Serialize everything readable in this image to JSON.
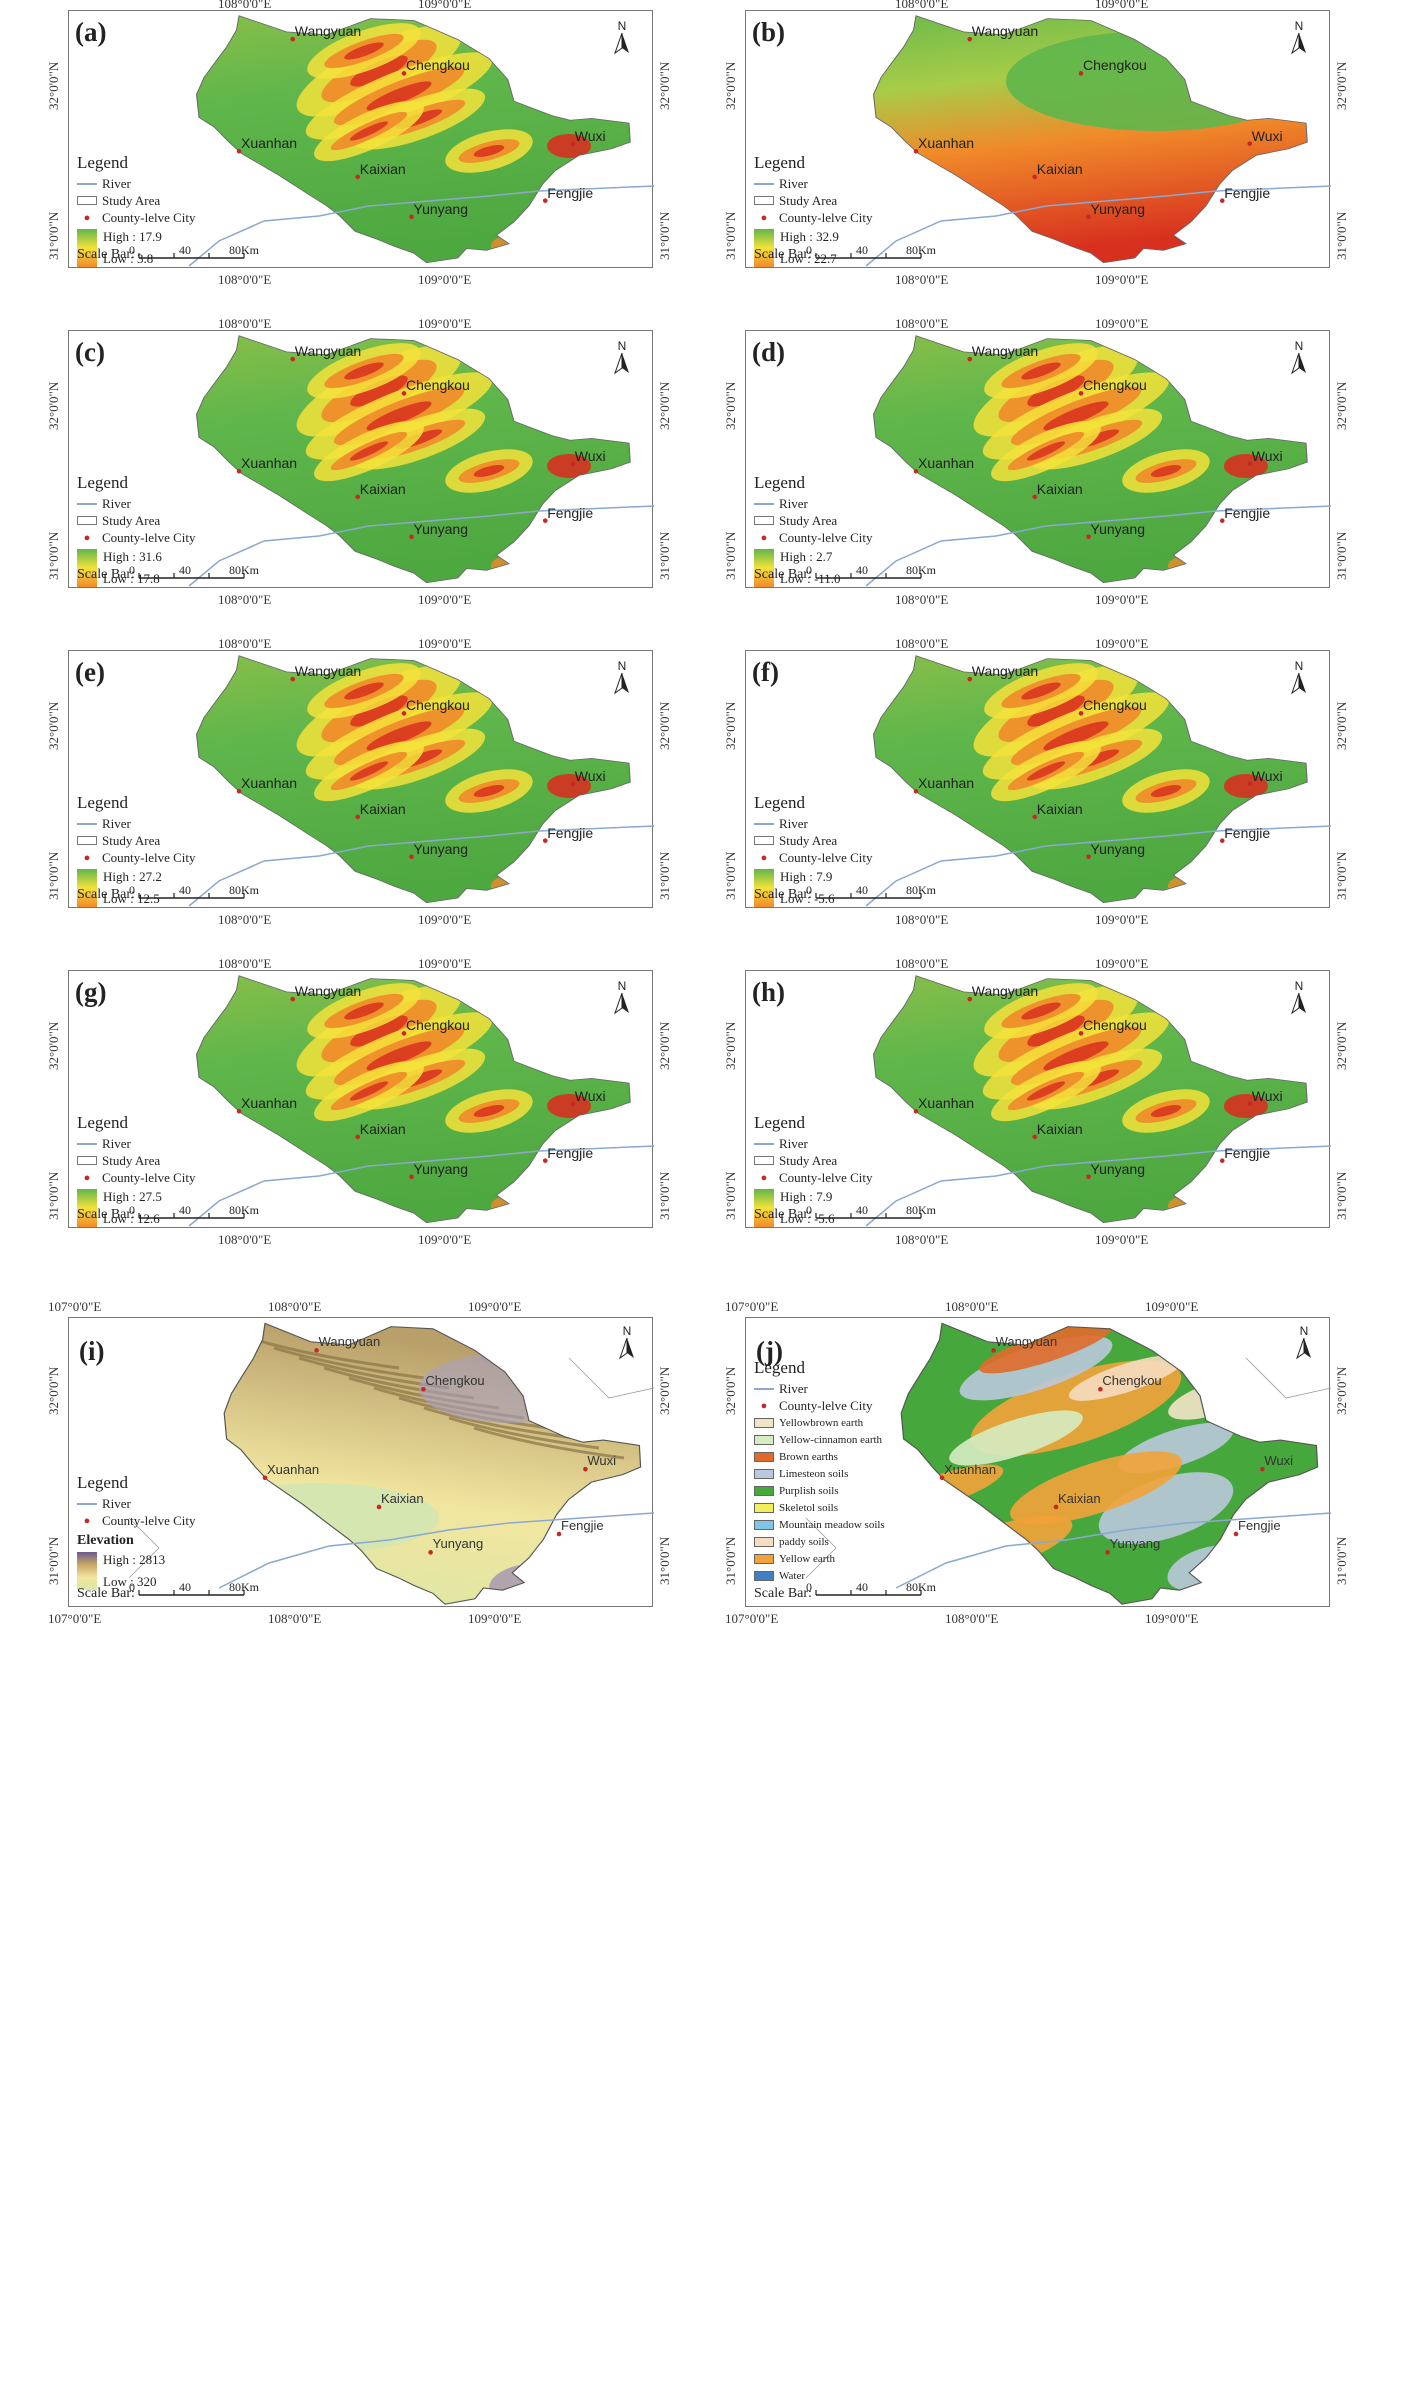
{
  "legend_common": {
    "title": "Legend",
    "river": "River",
    "study_area": "Study Area",
    "county_city": "County-lelve City"
  },
  "scale_bar": {
    "label": "Scale Bar:",
    "ticks": [
      "0",
      "40",
      "80Km"
    ]
  },
  "north_label": "N",
  "ticks_top": [
    "108°0'0\"E",
    "109°0'0\"E"
  ],
  "ticks_side": [
    "32°0'0\"N",
    "31°0'0\"N"
  ],
  "ticks_ij_x": [
    "107°0'0\"E",
    "108°0'0\"E",
    "109°0'0\"E"
  ],
  "cities": [
    "Wangyuan",
    "Chengkou",
    "Wuxi",
    "Xuanhan",
    "Kaixian",
    "Yunyang",
    "Fengjie"
  ],
  "panels": [
    {
      "label": "(a)",
      "high": "High : 17.9",
      "low": "Low : 3.8",
      "scheme": "north-hot"
    },
    {
      "label": "(b)",
      "high": "High : 32.9",
      "low": "Low : 22.7",
      "scheme": "south-hot"
    },
    {
      "label": "(c)",
      "high": "High : 31.6",
      "low": "Low : 17.8",
      "scheme": "north-hot"
    },
    {
      "label": "(d)",
      "high": "High : 2.7",
      "low": "Low : -11.0",
      "scheme": "north-hot"
    },
    {
      "label": "(e)",
      "high": "High : 27.2",
      "low": "Low : 12.5",
      "scheme": "north-hot"
    },
    {
      "label": "(f)",
      "high": "High : 7.9",
      "low": "Low : -5.6",
      "scheme": "north-hot"
    },
    {
      "label": "(g)",
      "high": "High : 27.5",
      "low": "Low : 12.6",
      "scheme": "north-hot"
    },
    {
      "label": "(h)",
      "high": "High : 7.9",
      "low": "Low : -5.6",
      "scheme": "north-hot"
    }
  ],
  "panel_i": {
    "label": "(i)",
    "elevation_title": "Elevation",
    "high": "High : 2813",
    "low": "Low :  320"
  },
  "panel_j": {
    "label": "(j)",
    "soils": [
      {
        "name": "Yellowbrown earth",
        "color": "#f3e3c6"
      },
      {
        "name": "Yellow-cinnamon earth",
        "color": "#d6ecc2"
      },
      {
        "name": "Brown earths",
        "color": "#e06a2a"
      },
      {
        "name": "Limesteon soils",
        "color": "#b9c8dc"
      },
      {
        "name": "Purplish soils",
        "color": "#46a83c"
      },
      {
        "name": "Skeletol soils",
        "color": "#f2ef5a"
      },
      {
        "name": "Mountain meadow soils",
        "color": "#7fc6e6"
      },
      {
        "name": "paddy soils",
        "color": "#f6dcc0"
      },
      {
        "name": "Yellow earth",
        "color": "#f2a23a"
      },
      {
        "name": "Water",
        "color": "#3f7fc2"
      }
    ]
  },
  "colors": {
    "green": "#5fb64b",
    "yellow": "#f4e23b",
    "orange": "#f08a2a",
    "red": "#d7301f",
    "river": "#8aa8d0",
    "city_dot": "#c62828"
  }
}
